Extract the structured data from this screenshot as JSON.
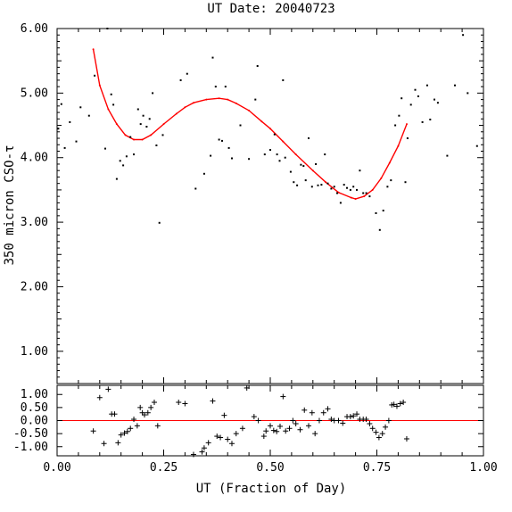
{
  "chart_data": [
    {
      "type": "scatter",
      "title": "UT Date: 20040723",
      "xlabel": "",
      "ylabel": "350 micron CSO-τ",
      "xlim": [
        0,
        1
      ],
      "ylim": [
        0.5,
        6.0
      ],
      "x_ticks": [
        "",
        "",
        "",
        "",
        ""
      ],
      "y_ticks": [
        "1.00",
        "2.00",
        "3.00",
        "4.00",
        "5.00",
        "6.00"
      ],
      "grid": false,
      "series": [
        {
          "kind": "points",
          "x": [
            0.003,
            0.01,
            0.018,
            0.03,
            0.045,
            0.055,
            0.075,
            0.088,
            0.113,
            0.118,
            0.127,
            0.132,
            0.14,
            0.148,
            0.155,
            0.163,
            0.172,
            0.18,
            0.19,
            0.196,
            0.202,
            0.21,
            0.217,
            0.224,
            0.233,
            0.24,
            0.248,
            0.29,
            0.305,
            0.325,
            0.345,
            0.36,
            0.365,
            0.372,
            0.38,
            0.387,
            0.395,
            0.403,
            0.41,
            0.43,
            0.45,
            0.465,
            0.47,
            0.487,
            0.5,
            0.51,
            0.516,
            0.522,
            0.53,
            0.535,
            0.548,
            0.555,
            0.563,
            0.572,
            0.578,
            0.583,
            0.59,
            0.598,
            0.607,
            0.612,
            0.62,
            0.628,
            0.635,
            0.643,
            0.65,
            0.657,
            0.665,
            0.673,
            0.68,
            0.688,
            0.695,
            0.703,
            0.71,
            0.718,
            0.725,
            0.733,
            0.748,
            0.757,
            0.765,
            0.775,
            0.783,
            0.793,
            0.802,
            0.808,
            0.817,
            0.822,
            0.83,
            0.84,
            0.847,
            0.857,
            0.868,
            0.875,
            0.885,
            0.893,
            0.915,
            0.933,
            0.952,
            0.963,
            0.985
          ],
          "y": [
            4.45,
            4.83,
            4.15,
            4.55,
            4.25,
            4.78,
            4.65,
            5.27,
            4.14,
            6.0,
            4.98,
            4.82,
            3.67,
            3.95,
            3.88,
            4.02,
            4.32,
            4.05,
            4.75,
            4.52,
            4.65,
            4.48,
            4.6,
            5.0,
            4.19,
            2.99,
            4.35,
            5.2,
            5.3,
            3.52,
            3.75,
            4.03,
            5.55,
            5.1,
            4.28,
            4.26,
            5.1,
            4.15,
            3.99,
            4.5,
            3.98,
            4.9,
            5.42,
            4.05,
            4.12,
            4.36,
            4.05,
            3.95,
            5.2,
            4.0,
            3.78,
            3.62,
            3.57,
            3.89,
            3.87,
            3.65,
            4.3,
            3.55,
            3.9,
            3.57,
            3.58,
            4.05,
            3.6,
            3.52,
            3.55,
            3.45,
            3.3,
            3.58,
            3.53,
            3.5,
            3.55,
            3.5,
            3.8,
            3.45,
            3.45,
            3.4,
            3.14,
            2.88,
            3.18,
            3.55,
            3.65,
            4.5,
            4.65,
            4.92,
            3.62,
            4.3,
            4.82,
            5.05,
            4.95,
            4.55,
            5.12,
            4.59,
            4.9,
            4.85,
            4.03,
            5.12,
            5.9,
            5.0,
            4.18
          ]
        },
        {
          "kind": "fit",
          "color": "#ff0000",
          "x": [
            0.085,
            0.1,
            0.12,
            0.14,
            0.16,
            0.18,
            0.2,
            0.22,
            0.25,
            0.28,
            0.3,
            0.32,
            0.35,
            0.38,
            0.4,
            0.42,
            0.45,
            0.48,
            0.5,
            0.53,
            0.56,
            0.6,
            0.63,
            0.66,
            0.69,
            0.7,
            0.72,
            0.74,
            0.76,
            0.78,
            0.8,
            0.82
          ],
          "y": [
            5.68,
            5.12,
            4.75,
            4.52,
            4.35,
            4.28,
            4.28,
            4.35,
            4.52,
            4.68,
            4.78,
            4.85,
            4.9,
            4.92,
            4.9,
            4.84,
            4.73,
            4.56,
            4.45,
            4.25,
            4.05,
            3.8,
            3.62,
            3.46,
            3.38,
            3.36,
            3.4,
            3.5,
            3.68,
            3.92,
            4.18,
            4.52
          ]
        }
      ]
    },
    {
      "type": "scatter",
      "title": "",
      "xlabel": "UT (Fraction of Day)",
      "ylabel": "",
      "xlim": [
        0,
        1
      ],
      "ylim": [
        -1.35,
        1.35
      ],
      "x_ticks": [
        "0.00",
        "0.25",
        "0.50",
        "0.75",
        "1.00"
      ],
      "y_ticks": [
        "1.00",
        "0.50",
        "0.00",
        "-0.50",
        "-1.00"
      ],
      "reference_line": 0,
      "series": [
        {
          "kind": "residuals",
          "x": [
            0.085,
            0.1,
            0.11,
            0.12,
            0.128,
            0.135,
            0.143,
            0.15,
            0.158,
            0.165,
            0.172,
            0.18,
            0.188,
            0.195,
            0.2,
            0.205,
            0.213,
            0.22,
            0.228,
            0.236,
            0.285,
            0.3,
            0.32,
            0.34,
            0.345,
            0.355,
            0.365,
            0.375,
            0.383,
            0.392,
            0.4,
            0.41,
            0.42,
            0.435,
            0.445,
            0.462,
            0.472,
            0.485,
            0.49,
            0.5,
            0.508,
            0.515,
            0.523,
            0.53,
            0.536,
            0.545,
            0.553,
            0.56,
            0.57,
            0.58,
            0.59,
            0.598,
            0.605,
            0.615,
            0.625,
            0.635,
            0.643,
            0.65,
            0.66,
            0.67,
            0.68,
            0.688,
            0.695,
            0.703,
            0.71,
            0.718,
            0.725,
            0.733,
            0.74,
            0.748,
            0.755,
            0.763,
            0.77,
            0.778,
            0.785,
            0.79,
            0.797,
            0.805,
            0.812,
            0.82
          ],
          "y": [
            -0.4,
            0.88,
            -0.88,
            1.2,
            0.25,
            0.25,
            -0.85,
            -0.55,
            -0.48,
            -0.42,
            -0.3,
            0.05,
            -0.2,
            0.5,
            0.3,
            0.22,
            0.3,
            0.5,
            0.7,
            -0.2,
            0.7,
            0.65,
            -1.3,
            -1.2,
            -1.05,
            -0.85,
            0.75,
            -0.6,
            -0.65,
            0.2,
            -0.72,
            -0.88,
            -0.5,
            -0.3,
            1.25,
            0.15,
            0.0,
            -0.6,
            -0.4,
            -0.2,
            -0.38,
            -0.42,
            -0.22,
            0.92,
            -0.4,
            -0.3,
            0.0,
            -0.12,
            -0.35,
            0.4,
            -0.2,
            0.3,
            -0.5,
            0.0,
            0.3,
            0.45,
            0.05,
            0.0,
            0.0,
            -0.1,
            0.15,
            0.15,
            0.18,
            0.25,
            0.05,
            0.05,
            0.05,
            -0.12,
            -0.3,
            -0.45,
            -0.65,
            -0.5,
            -0.25,
            0.0,
            0.6,
            0.62,
            0.55,
            0.65,
            0.7,
            -0.7
          ]
        }
      ]
    }
  ]
}
